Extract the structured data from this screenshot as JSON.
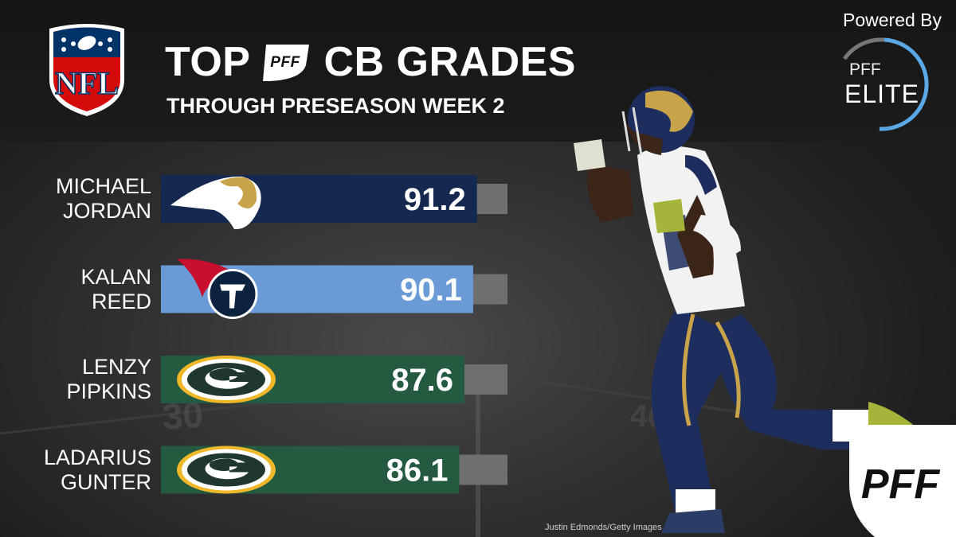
{
  "header": {
    "title_prefix": "TOP",
    "title_suffix": "CB GRADES",
    "subtitle": "THROUGH PRESEASON WEEK 2",
    "league_logo_text": "NFL",
    "inline_logo_text": "PFF"
  },
  "badge": {
    "powered_by": "Powered By",
    "pff_label": "PFF",
    "elite_label": "ELITE"
  },
  "corner_logo_text": "PFF",
  "photo_credit": "Justin Edmonds/Getty  Images",
  "chart_data": {
    "type": "bar",
    "orientation": "horizontal",
    "title": "TOP PFF CB GRADES",
    "subtitle": "THROUGH PRESEASON WEEK 2",
    "xlabel": "",
    "ylabel": "",
    "xlim": [
      0,
      100
    ],
    "categories": [
      "MICHAEL JORDAN",
      "KALAN REED",
      "LENZY PIPKINS",
      "LADARIUS GUNTER"
    ],
    "values": [
      91.2,
      90.1,
      87.6,
      86.1
    ],
    "value_labels": [
      "91.2",
      "90.1",
      "87.6",
      "86.1"
    ],
    "name_lines": [
      [
        "MICHAEL",
        "JORDAN"
      ],
      [
        "KALAN",
        "REED"
      ],
      [
        "LENZY",
        "PIPKINS"
      ],
      [
        "LADARIUS",
        "GUNTER"
      ]
    ],
    "teams": [
      "rams",
      "titans",
      "packers",
      "packers"
    ],
    "bar_colors": [
      "#15284f",
      "#6a9bd6",
      "#245a3f",
      "#245a3f"
    ],
    "remainder_color": "#6f6f6f",
    "grid": false,
    "legend": "none"
  }
}
